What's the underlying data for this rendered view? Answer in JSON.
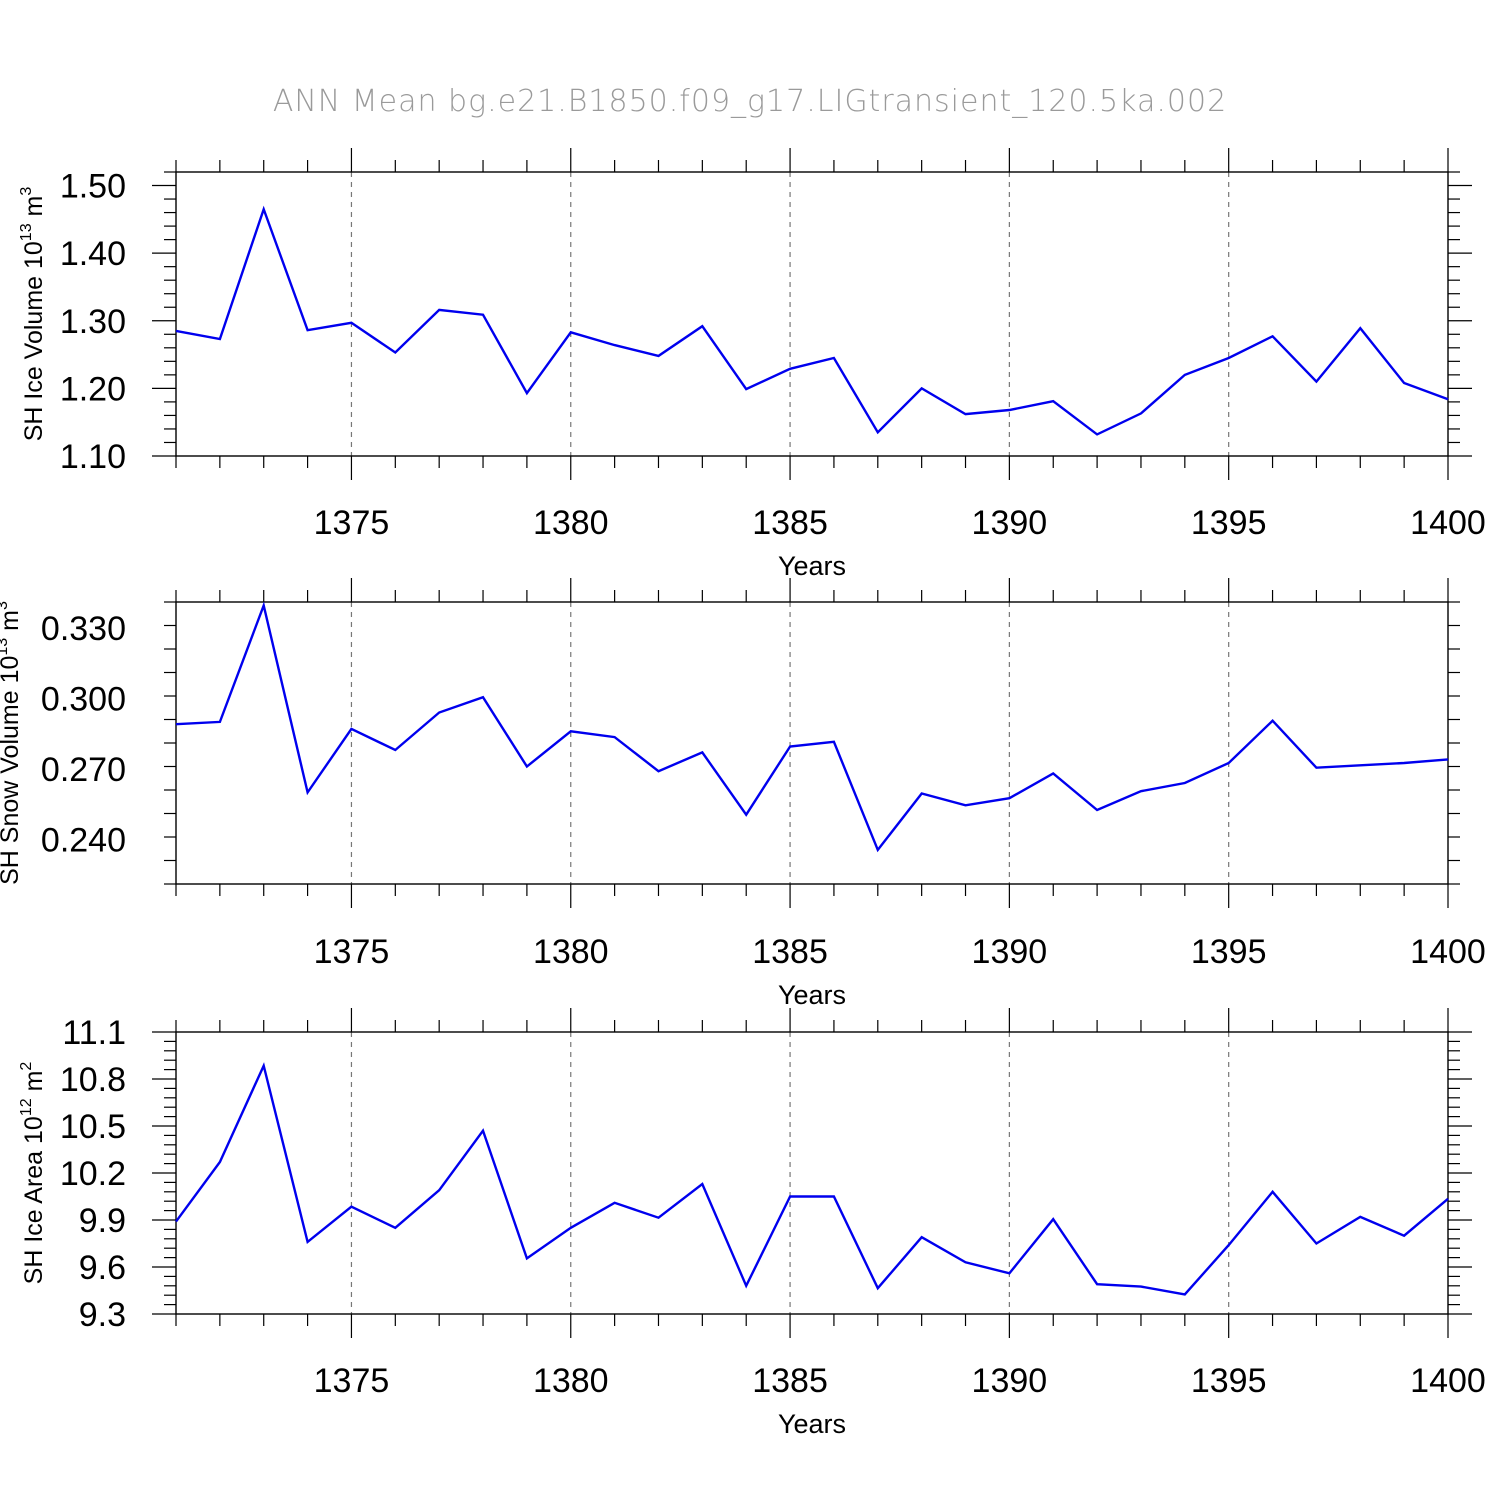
{
  "colors": {
    "series": "#0000ee",
    "title": "#9a9a9a",
    "grid": "#777777"
  },
  "title": "ANN Mean bg.e21.B1850.f09_g17.LIGtransient_120.5ka.002",
  "chart_data": [
    {
      "type": "line",
      "ylabel": {
        "main": "SH Ice Volume 10",
        "sup_exp": "13",
        "unit": " m",
        "sup_unit": "3"
      },
      "xlabel": "Years",
      "xlim": [
        1371,
        1400
      ],
      "ylim": [
        1.1,
        1.52
      ],
      "yticks": [
        "1.10",
        "1.20",
        "1.30",
        "1.40",
        "1.50"
      ],
      "xticks": [
        "1375",
        "1380",
        "1385",
        "1390",
        "1395",
        "1400"
      ],
      "x": [
        1371,
        1372,
        1373,
        1374,
        1375,
        1376,
        1377,
        1378,
        1379,
        1380,
        1381,
        1382,
        1383,
        1384,
        1385,
        1386,
        1387,
        1388,
        1389,
        1390,
        1391,
        1392,
        1393,
        1394,
        1395,
        1396,
        1397,
        1398,
        1399,
        1400
      ],
      "series": [
        {
          "values": [
            1.285,
            1.273,
            1.465,
            1.286,
            1.297,
            1.253,
            1.316,
            1.309,
            1.193,
            1.283,
            1.264,
            1.248,
            1.292,
            1.199,
            1.229,
            1.245,
            1.135,
            1.2,
            1.162,
            1.168,
            1.181,
            1.132,
            1.163,
            1.22,
            1.245,
            1.277,
            1.21,
            1.289,
            1.208,
            1.184
          ]
        }
      ]
    },
    {
      "type": "line",
      "ylabel": {
        "main": "SH Snow Volume 10",
        "sup_exp": "13",
        "unit": " m",
        "sup_unit": "3"
      },
      "xlabel": "Years",
      "xlim": [
        1371,
        1400
      ],
      "ylim": [
        0.221,
        0.341
      ],
      "yticks": [
        "0.240",
        "0.270",
        "0.300",
        "0.330"
      ],
      "xticks": [
        "1375",
        "1380",
        "1385",
        "1390",
        "1395",
        "1400"
      ],
      "x": [
        1371,
        1372,
        1373,
        1374,
        1375,
        1376,
        1377,
        1378,
        1379,
        1380,
        1381,
        1382,
        1383,
        1384,
        1385,
        1386,
        1387,
        1388,
        1389,
        1390,
        1391,
        1392,
        1393,
        1394,
        1395,
        1396,
        1397,
        1398,
        1399,
        1400
      ],
      "series": [
        {
          "values": [
            0.289,
            0.29,
            0.3395,
            0.26,
            0.287,
            0.278,
            0.294,
            0.3005,
            0.271,
            0.286,
            0.2835,
            0.269,
            0.277,
            0.2505,
            0.2795,
            0.2815,
            0.2355,
            0.2595,
            0.2545,
            0.2575,
            0.268,
            0.2525,
            0.2605,
            0.264,
            0.2725,
            0.2905,
            0.2705,
            0.2715,
            0.2725,
            0.274
          ]
        }
      ]
    },
    {
      "type": "line",
      "ylabel": {
        "main": "SH Ice Area 10",
        "sup_exp": "12",
        "unit": " m",
        "sup_unit": "2"
      },
      "xlabel": "Years",
      "xlim": [
        1371,
        1400
      ],
      "ylim": [
        9.3,
        11.1
      ],
      "yticks": [
        "9.3",
        "9.6",
        "9.9",
        "10.2",
        "10.5",
        "10.8",
        "11.1"
      ],
      "xticks": [
        "1375",
        "1380",
        "1385",
        "1390",
        "1395",
        "1400"
      ],
      "x": [
        1371,
        1372,
        1373,
        1374,
        1375,
        1376,
        1377,
        1378,
        1379,
        1380,
        1381,
        1382,
        1383,
        1384,
        1385,
        1386,
        1387,
        1388,
        1389,
        1390,
        1391,
        1392,
        1393,
        1394,
        1395,
        1396,
        1397,
        1398,
        1399,
        1400
      ],
      "series": [
        {
          "values": [
            9.89,
            10.27,
            10.885,
            9.76,
            9.985,
            9.85,
            10.09,
            10.47,
            9.655,
            9.85,
            10.01,
            9.915,
            10.13,
            9.48,
            10.05,
            10.05,
            9.465,
            9.79,
            9.63,
            9.56,
            9.905,
            9.49,
            9.475,
            9.425,
            9.74,
            10.08,
            9.75,
            9.92,
            9.8,
            10.035
          ]
        }
      ]
    }
  ]
}
